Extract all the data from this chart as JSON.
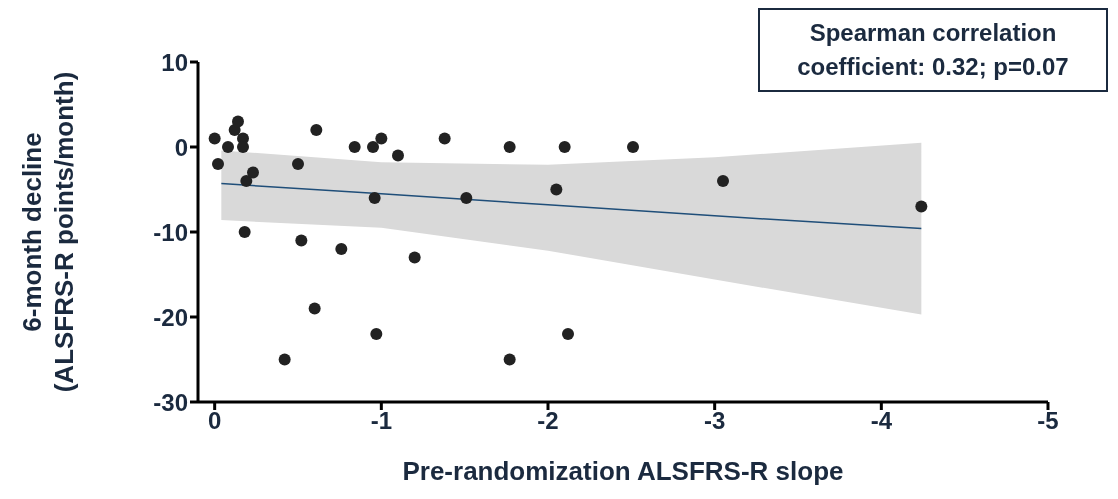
{
  "chart_data": {
    "type": "scatter",
    "xlabel": "Pre-randomization ALSFRS-R slope",
    "ylabel": "6-month decline\n(ALSFRS-R points/month)",
    "xlim": [
      0.1,
      -5
    ],
    "xticks": [
      0,
      -1,
      -2,
      -3,
      -4,
      -5
    ],
    "ylim": [
      -30,
      10
    ],
    "yticks": [
      -30,
      -20,
      -10,
      0,
      10
    ],
    "grid": false,
    "legend": false,
    "marker": "circle",
    "annotations": [
      "Spearman correlation coefficient: 0.32; p=0.07"
    ],
    "series": [
      {
        "type": "scatter",
        "color": "#222222",
        "x": [
          0.0,
          -0.02,
          -0.08,
          -0.12,
          -0.14,
          -0.17,
          -0.17,
          -0.19,
          -0.18,
          -0.23,
          -0.5,
          -0.52,
          -0.6,
          -0.61,
          -0.42,
          -0.76,
          -0.84,
          -0.95,
          -1.0,
          -0.96,
          -0.97,
          -1.1,
          -1.2,
          -1.38,
          -1.51,
          -1.77,
          -1.77,
          -2.05,
          -2.1,
          -2.12,
          -2.51,
          -3.05,
          -4.24
        ],
        "values": [
          1,
          -2,
          0,
          2,
          3,
          1,
          0,
          -4,
          -10,
          -3,
          -2,
          -11,
          -19,
          2,
          -25,
          -12,
          0,
          0,
          1,
          -6,
          -22,
          -1,
          -13,
          1,
          -6,
          0,
          -25,
          -5,
          0,
          -22,
          0,
          -4,
          -7
        ]
      },
      {
        "type": "line",
        "color": "#1f4e79",
        "line_style": "solid",
        "marker": "none",
        "x": [
          -0.04,
          -1,
          -2,
          -3,
          -4.24
        ],
        "values": [
          -4.3,
          -5.5,
          -6.8,
          -8.1,
          -9.6
        ],
        "lower": [
          -8.6,
          -9.5,
          -12.2,
          -15.6,
          -19.7
        ],
        "upper": [
          -0.4,
          -1.8,
          -2.1,
          -1.2,
          0.5
        ]
      }
    ]
  }
}
